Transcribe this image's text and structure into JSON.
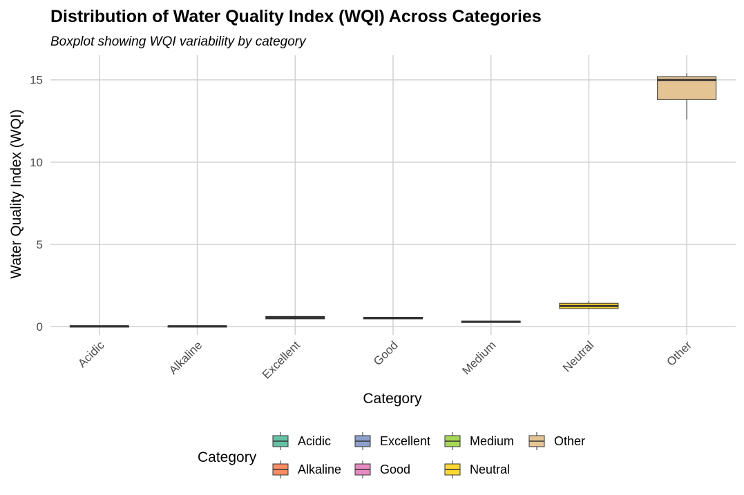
{
  "chart_data": {
    "type": "boxplot",
    "title": "Distribution of Water Quality Index (WQI) Across Categories",
    "subtitle": "Boxplot showing WQI variability by category",
    "xlabel": "Category",
    "ylabel": "Water Quality Index (WQI)",
    "ylim": [
      -0.5,
      16.5
    ],
    "yticks": [
      0,
      5,
      10,
      15
    ],
    "grid": true,
    "legend": {
      "title": "Category",
      "position": "bottom"
    },
    "categories": [
      "Acidic",
      "Alkaline",
      "Excellent",
      "Good",
      "Medium",
      "Neutral",
      "Other"
    ],
    "boxes": [
      {
        "category": "Acidic",
        "color": "#66C2A5",
        "min": 0.0,
        "q1": 0.0,
        "median": 0.02,
        "q3": 0.05,
        "max": 0.06
      },
      {
        "category": "Alkaline",
        "color": "#FC8D62",
        "min": 0.0,
        "q1": 0.0,
        "median": 0.02,
        "q3": 0.05,
        "max": 0.06
      },
      {
        "category": "Excellent",
        "color": "#8DA0CB",
        "min": 0.45,
        "q1": 0.47,
        "median": 0.55,
        "q3": 0.62,
        "max": 0.65
      },
      {
        "category": "Good",
        "color": "#E78AC3",
        "min": 0.45,
        "q1": 0.47,
        "median": 0.52,
        "q3": 0.57,
        "max": 0.59
      },
      {
        "category": "Medium",
        "color": "#A6D854",
        "min": 0.25,
        "q1": 0.27,
        "median": 0.3,
        "q3": 0.33,
        "max": 0.35
      },
      {
        "category": "Neutral",
        "color": "#FFD92F",
        "min": 1.05,
        "q1": 1.1,
        "median": 1.25,
        "q3": 1.42,
        "max": 1.55
      },
      {
        "category": "Other",
        "color": "#E5C494",
        "min": 12.6,
        "q1": 13.8,
        "median": 15.0,
        "q3": 15.2,
        "max": 15.4
      }
    ],
    "legend_entries": [
      {
        "label": "Acidic",
        "color": "#66C2A5"
      },
      {
        "label": "Alkaline",
        "color": "#FC8D62"
      },
      {
        "label": "Excellent",
        "color": "#8DA0CB"
      },
      {
        "label": "Good",
        "color": "#E78AC3"
      },
      {
        "label": "Medium",
        "color": "#A6D854"
      },
      {
        "label": "Neutral",
        "color": "#FFD92F"
      },
      {
        "label": "Other",
        "color": "#E5C494"
      }
    ]
  }
}
